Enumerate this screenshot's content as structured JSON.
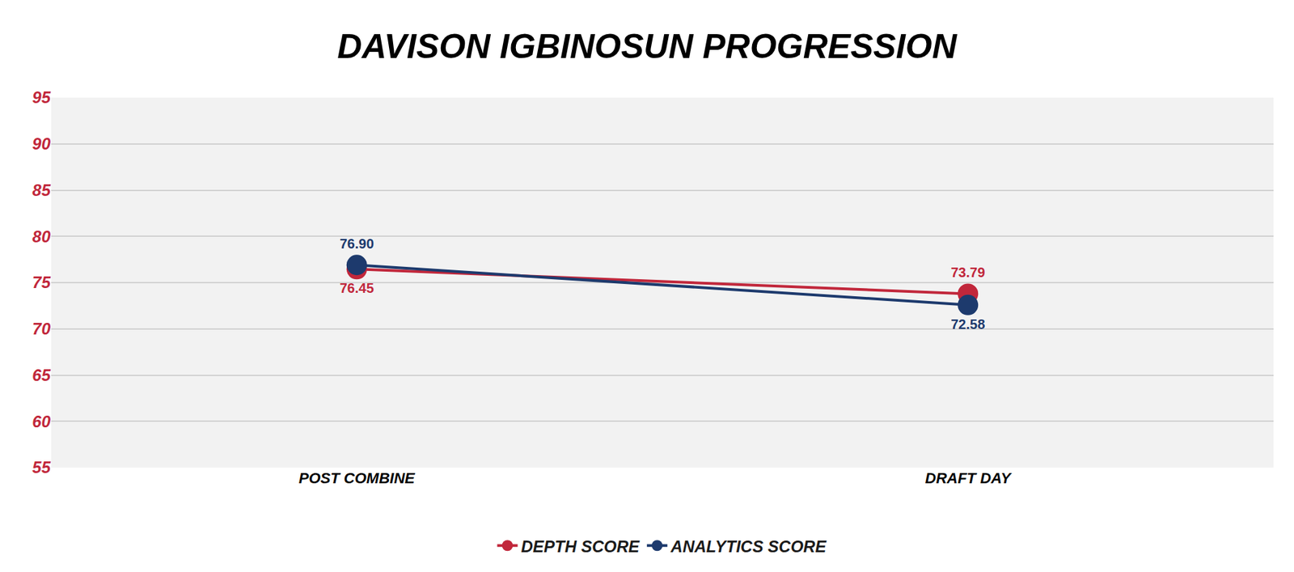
{
  "chart_data": {
    "type": "line",
    "title": "DAVISON IGBINOSUN PROGRESSION",
    "categories": [
      "POST COMBINE",
      "DRAFT DAY"
    ],
    "series": [
      {
        "name": "DEPTH SCORE",
        "color": "#c1273b",
        "values": [
          76.45,
          73.79
        ]
      },
      {
        "name": "ANALYTICS SCORE",
        "color": "#1d3a6d",
        "values": [
          76.9,
          72.58
        ]
      }
    ],
    "ylim": [
      55,
      95
    ],
    "yticks": [
      55,
      60,
      65,
      70,
      75,
      80,
      85,
      90,
      95
    ],
    "grid": true,
    "legend": "bottom",
    "data_labels": true,
    "marker": "circle"
  }
}
